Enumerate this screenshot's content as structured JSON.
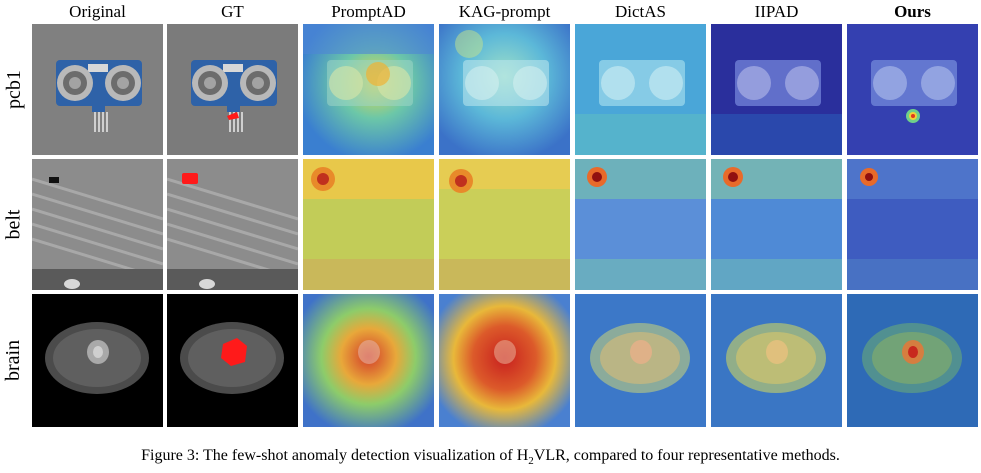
{
  "columns": [
    "Original",
    "GT",
    "PromptAD",
    "KAG-prompt",
    "DictAS",
    "IIPAD",
    "Ours"
  ],
  "rows": [
    "pcb1",
    "belt",
    "brain"
  ],
  "caption": {
    "prefix": "Figure 3: The few-shot anomaly detection visualization of H",
    "subscript": "2",
    "suffix": "VLR, compared to four representative methods."
  }
}
